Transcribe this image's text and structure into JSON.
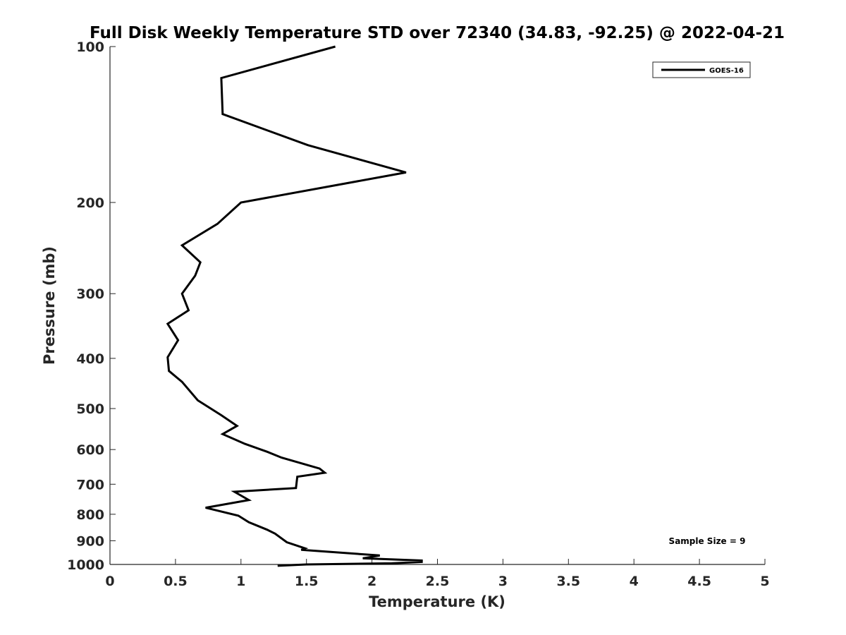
{
  "chart_data": {
    "type": "line",
    "title": "Full Disk Weekly Temperature STD over 72340 (34.83, -92.25) @ 2022-04-21",
    "xlabel": "Temperature (K)",
    "ylabel": "Pressure (mb)",
    "xlim": [
      0,
      5
    ],
    "ylim": [
      100,
      1000
    ],
    "y_scale": "log",
    "y_reversed": true,
    "x_ticks": [
      "0",
      "0.5",
      "1",
      "1.5",
      "2",
      "2.5",
      "3",
      "3.5",
      "4",
      "4.5",
      "5"
    ],
    "y_ticks": [
      "100",
      "200",
      "300",
      "400",
      "500",
      "600",
      "700",
      "800",
      "900",
      "1000"
    ],
    "grid": false,
    "legend_position": "top-right",
    "annotation": "Sample Size = 9",
    "series": [
      {
        "name": "GOES-16",
        "color": "#000000",
        "x": [
          1.72,
          0.85,
          0.86,
          1.51,
          2.26,
          1.0,
          0.82,
          0.55,
          0.69,
          0.65,
          0.55,
          0.6,
          0.44,
          0.52,
          0.44,
          0.45,
          0.55,
          0.67,
          0.85,
          0.97,
          0.86,
          1.03,
          1.2,
          1.31,
          1.6,
          1.64,
          1.43,
          1.42,
          0.95,
          1.06,
          0.73,
          0.98,
          1.06,
          1.2,
          1.26,
          1.35,
          1.49,
          1.46,
          2.06,
          1.93,
          2.38,
          2.38,
          2.15,
          1.5,
          1.28
        ],
        "y": [
          100,
          115,
          135,
          155,
          175,
          200,
          220,
          242,
          261,
          277,
          300,
          323,
          343,
          369,
          398,
          423,
          444,
          482,
          515,
          540,
          560,
          585,
          606,
          622,
          653,
          665,
          677,
          712,
          724,
          751,
          777,
          805,
          829,
          857,
          872,
          906,
          931,
          937,
          961,
          973,
          983,
          989,
          995,
          1000,
          1006
        ]
      }
    ]
  }
}
